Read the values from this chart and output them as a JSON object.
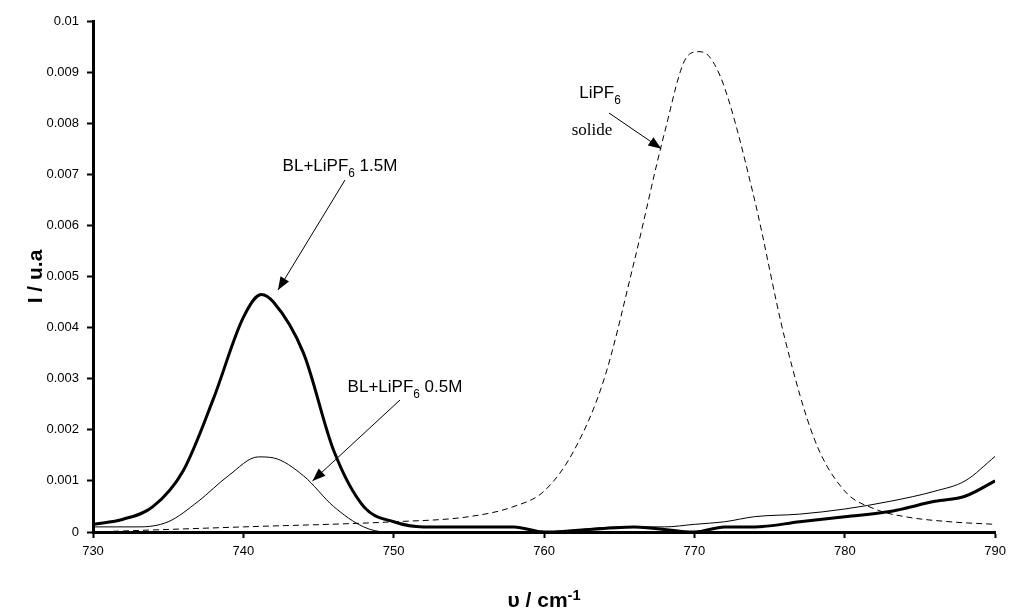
{
  "chart_data": {
    "type": "line",
    "xlabel": "υ / cm$^{-1}$",
    "ylabel": "I / u.a",
    "xlim": [
      730,
      790
    ],
    "xticks": [
      730,
      740,
      750,
      760,
      770,
      780,
      790
    ],
    "ylim": [
      0,
      0.01
    ],
    "yticks": [
      0,
      0.001,
      0.002,
      0.003,
      0.004,
      0.005,
      0.006,
      0.007,
      0.008,
      0.009,
      0.01
    ],
    "grid": false,
    "legend": false,
    "marker": "none",
    "series": [
      {
        "color": "#000000",
        "line_style": "solid",
        "x": [
          730,
          732,
          734,
          736,
          738,
          740,
          741.2,
          742,
          744,
          746,
          748,
          750,
          752,
          755,
          758,
          760,
          766,
          770,
          772,
          774,
          777,
          780,
          783,
          786,
          788,
          790
        ],
        "values": [
          0.00015,
          0.00025,
          0.0005,
          0.0012,
          0.0026,
          0.0042,
          0.00465,
          0.0045,
          0.0035,
          0.0016,
          0.0005,
          0.0002,
          0.0001,
          0.0001,
          0.0001,
          0,
          0.0001,
          0,
          0.0001,
          0.0001,
          0.0002,
          0.0003,
          0.0004,
          0.0006,
          0.0007,
          0.001
        ]
      },
      {
        "color": "#000000",
        "line_style": "solid",
        "x": [
          730,
          733,
          735,
          737,
          739,
          741,
          742,
          744,
          746,
          748,
          749.5,
          755,
          760,
          765,
          768,
          770,
          772,
          774,
          777,
          780,
          783,
          786,
          788,
          790
        ],
        "values": [
          0.0001,
          0.0001,
          0.0002,
          0.0006,
          0.0011,
          0.00147,
          0.00145,
          0.0011,
          0.0005,
          0.0001,
          0,
          0,
          0,
          0.0001,
          0.0001,
          0.00015,
          0.0002,
          0.0003,
          0.00035,
          0.00045,
          0.0006,
          0.0008,
          0.001,
          0.00148
        ]
      },
      {
        "color": "#000000",
        "line_style": "dashed",
        "x": [
          730,
          740,
          750,
          755,
          758,
          760,
          762,
          764,
          766,
          768,
          769.5,
          770.3,
          771,
          772,
          774,
          776,
          778,
          780,
          782,
          784,
          787,
          790
        ],
        "values": [
          0,
          0.0001,
          0.0002,
          0.0003,
          0.0005,
          0.0008,
          0.0016,
          0.003,
          0.0053,
          0.0078,
          0.0093,
          0.0094,
          0.0093,
          0.0087,
          0.0065,
          0.0038,
          0.0018,
          0.0008,
          0.00045,
          0.0003,
          0.0002,
          0.00015
        ]
      }
    ],
    "annotations": [
      "BL+LiPF$_{6}$ 1.5M",
      {
        "text": "BL+LiPF$_{6}$ 0.5M",
        "x": 744.6,
        "y": 0.001
      },
      {
        "text": "LiPF$_{6}$",
        "x": 767.8,
        "y": 0.0075
      },
      "solide"
    ]
  }
}
